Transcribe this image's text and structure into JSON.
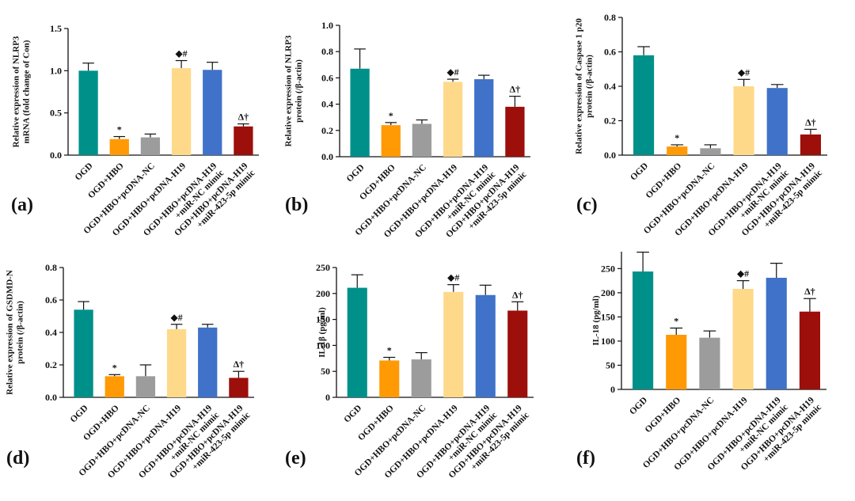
{
  "figure": {
    "colors": [
      "#00908a",
      "#ff9a05",
      "#9c9c9c",
      "#ffd98a",
      "#3f72c8",
      "#9c0f0a"
    ]
  },
  "chart_data": [
    {
      "type": "bar",
      "panel": "(a)",
      "ylabel": [
        "Relative expression of NLRP3",
        "mRNA (fold change of Con)"
      ],
      "ylim": [
        0,
        1.5
      ],
      "yticks": [
        "0.0",
        "0.5",
        "1.0",
        "1.5"
      ],
      "categories": [
        [
          "OGD"
        ],
        [
          "OGD+HBO"
        ],
        [
          "OGD+HBO+pcDNA-NC"
        ],
        [
          "OGD+HBO+pcDNA-H19"
        ],
        [
          "OGD+HBO+pcDNA-H19",
          "+miR-NC mimic"
        ],
        [
          "OGD+HBO+pcDNA-H19",
          "+miR-423-5p mimic"
        ]
      ],
      "values": [
        1.0,
        0.19,
        0.21,
        1.03,
        1.01,
        0.34
      ],
      "errors": [
        0.09,
        0.03,
        0.04,
        0.09,
        0.09,
        0.03
      ],
      "annotations": [
        "",
        "*",
        "",
        "◆#",
        "",
        "Δ†"
      ]
    },
    {
      "type": "bar",
      "panel": "(b)",
      "ylabel": [
        "Relative expression of NLRP3",
        "protein (/β-actin)"
      ],
      "ylim": [
        0,
        1.0
      ],
      "yticks": [
        "0.0",
        "0.2",
        "0.4",
        "0.6",
        "0.8",
        "1.0"
      ],
      "categories": [
        [
          "OGD"
        ],
        [
          "OGD+HBO"
        ],
        [
          "OGD+HBO+pcDNA-NC"
        ],
        [
          "OGD+HBO+pcDNA-H19"
        ],
        [
          "OGD+HBO+pcDNA-H19",
          "+miR-NC mimic"
        ],
        [
          "OGD+HBO+pcDNA-H19",
          "+miR-423-5p mimic"
        ]
      ],
      "values": [
        0.67,
        0.24,
        0.25,
        0.57,
        0.59,
        0.38
      ],
      "errors": [
        0.15,
        0.02,
        0.03,
        0.02,
        0.03,
        0.08
      ],
      "annotations": [
        "",
        "*",
        "",
        "◆#",
        "",
        "Δ†"
      ]
    },
    {
      "type": "bar",
      "panel": "(c)",
      "ylabel": [
        "Relative expression of Caspase 1 p20",
        "protein (/β-actin)"
      ],
      "ylim": [
        0,
        0.8
      ],
      "yticks": [
        "0.0",
        "0.2",
        "0.4",
        "0.6",
        "0.8"
      ],
      "categories": [
        [
          "OGD"
        ],
        [
          "OGD+HBO"
        ],
        [
          "OGD+HBO+pcDNA-NC"
        ],
        [
          "OGD+HBO+pcDNA-H19"
        ],
        [
          "OGD+HBO+pcDNA-H19",
          "+miR-NC mimic"
        ],
        [
          "OGD+HBO+pcDNA-H19",
          "+miR-423-5p mimic"
        ]
      ],
      "values": [
        0.58,
        0.05,
        0.04,
        0.4,
        0.39,
        0.12
      ],
      "errors": [
        0.05,
        0.01,
        0.02,
        0.04,
        0.02,
        0.03
      ],
      "annotations": [
        "",
        "*",
        "",
        "◆#",
        "",
        "Δ†"
      ]
    },
    {
      "type": "bar",
      "panel": "(d)",
      "ylabel": [
        "Relative expression of GSDMD-N",
        "protein (/β-actin)"
      ],
      "ylim": [
        0,
        0.8
      ],
      "yticks": [
        "0.0",
        "0.2",
        "0.4",
        "0.6",
        "0.8"
      ],
      "categories": [
        [
          "OGD"
        ],
        [
          "OGD+HBO"
        ],
        [
          "OGD+HBO+pcDNA-NC"
        ],
        [
          "OGD+HBO+pcDNA-H19"
        ],
        [
          "OGD+HBO+pcDNA-H19",
          "+miR-NC mimic"
        ],
        [
          "OGD+HBO+pcDNA-H19",
          "+miR-423-5p mimic"
        ]
      ],
      "values": [
        0.54,
        0.13,
        0.13,
        0.42,
        0.43,
        0.12
      ],
      "errors": [
        0.05,
        0.01,
        0.07,
        0.03,
        0.02,
        0.04
      ],
      "annotations": [
        "",
        "*",
        "",
        "◆#",
        "",
        "Δ†"
      ]
    },
    {
      "type": "bar",
      "panel": "(e)",
      "ylabel": [
        "IL-1β (pg/ml)"
      ],
      "ylim": [
        0,
        250
      ],
      "yticks": [
        "0",
        "50",
        "100",
        "150",
        "200",
        "250"
      ],
      "categories": [
        [
          "OGD"
        ],
        [
          "OGD+HBO"
        ],
        [
          "OGD+HBO+pcDNA-NC"
        ],
        [
          "OGD+HBO+pcDNA-H19"
        ],
        [
          "OGD+HBO+pcDNA-H19",
          "+miR-NC mimic"
        ],
        [
          "OGD+HBO+pcDNA-H19",
          "+miR-423-5p mimic"
        ]
      ],
      "values": [
        211,
        71,
        73,
        203,
        197,
        167
      ],
      "errors": [
        25,
        6,
        13,
        14,
        19,
        17
      ],
      "annotations": [
        "",
        "*",
        "",
        "◆#",
        "",
        "Δ†"
      ]
    },
    {
      "type": "bar",
      "panel": "(f)",
      "ylabel": [
        "IL-18 (pg/ml)"
      ],
      "ylim": [
        0,
        285
      ],
      "yticks": [
        "0",
        "50",
        "100",
        "150",
        "200",
        "250"
      ],
      "categories": [
        [
          "OGD"
        ],
        [
          "OGD+HBO"
        ],
        [
          "OGD+HBO+pcDNA-NC"
        ],
        [
          "OGD+HBO+pcDNA-H19"
        ],
        [
          "OGD+HBO+pcDNA-H19",
          "+miR-NC mimic"
        ],
        [
          "OGD+HBO+pcDNA-H19",
          "+miR-423-5p mimic"
        ]
      ],
      "values": [
        244,
        113,
        107,
        208,
        231,
        161
      ],
      "errors": [
        40,
        14,
        14,
        17,
        30,
        27
      ],
      "annotations": [
        "",
        "*",
        "",
        "◆#",
        "",
        "Δ†"
      ]
    }
  ]
}
